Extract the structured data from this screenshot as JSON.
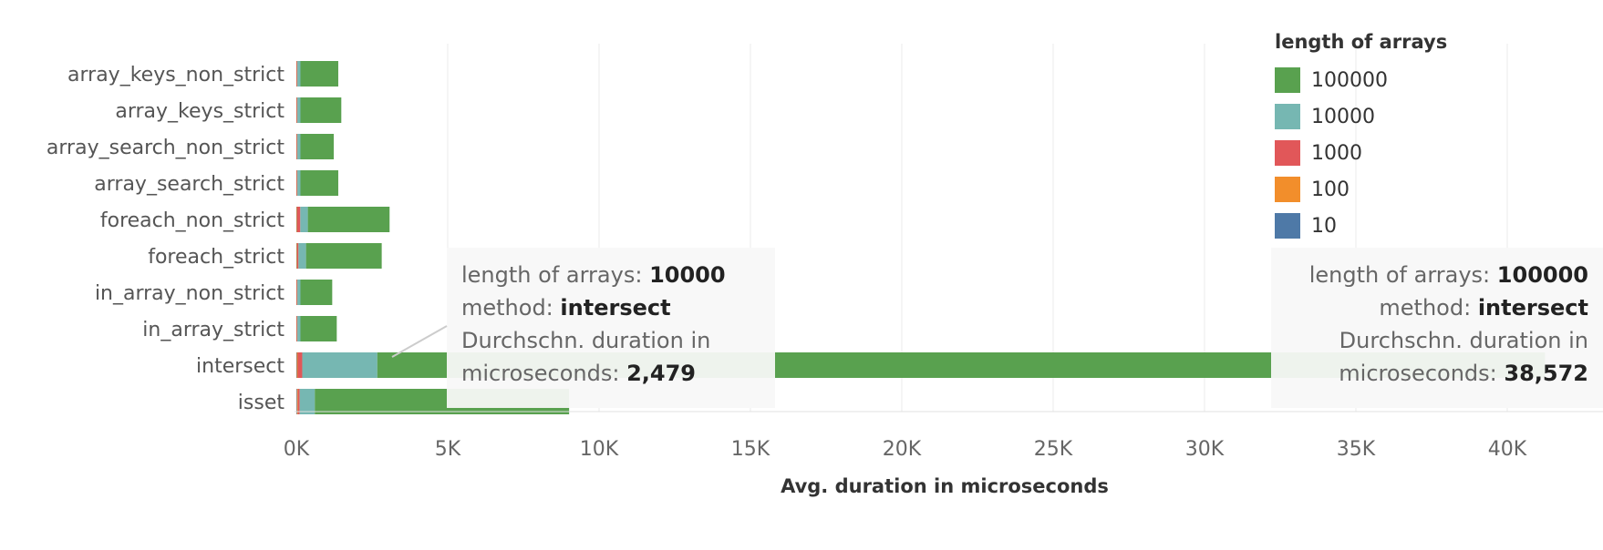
{
  "chart_data": {
    "type": "bar",
    "orientation": "horizontal",
    "stacked": true,
    "categories": [
      "array_keys_non_strict",
      "array_keys_strict",
      "array_search_non_strict",
      "array_search_strict",
      "foreach_non_strict",
      "foreach_strict",
      "in_array_non_strict",
      "in_array_strict",
      "intersect",
      "isset"
    ],
    "series": [
      {
        "name": "10",
        "color": "#4e79a7",
        "values": [
          5,
          5,
          5,
          5,
          10,
          10,
          5,
          5,
          15,
          20
        ]
      },
      {
        "name": "100",
        "color": "#f28e2b",
        "values": [
          10,
          10,
          10,
          10,
          20,
          20,
          10,
          10,
          30,
          30
        ]
      },
      {
        "name": "1000",
        "color": "#e15759",
        "values": [
          20,
          20,
          20,
          20,
          100,
          40,
          20,
          20,
          150,
          60
        ]
      },
      {
        "name": "10000",
        "color": "#76b7b2",
        "values": [
          100,
          100,
          100,
          100,
          250,
          250,
          100,
          100,
          2479,
          500
        ]
      },
      {
        "name": "100000",
        "color": "#59a14f",
        "values": [
          1250,
          1350,
          1100,
          1250,
          2700,
          2500,
          1050,
          1200,
          38572,
          8400
        ]
      }
    ],
    "xlabel": "Avg. duration in microseconds",
    "xticks": [
      "0K",
      "5K",
      "10K",
      "15K",
      "20K",
      "25K",
      "30K",
      "35K",
      "40K"
    ],
    "xlim": [
      0,
      43300
    ],
    "grid": "vertical",
    "legend_title": "length of arrays",
    "legend_order": [
      "100000",
      "10000",
      "1000",
      "100",
      "10"
    ],
    "legend_position": "top-right"
  },
  "tooltips": [
    {
      "label1": "length of arrays:",
      "value1": "10000",
      "label2": "method:",
      "value2": "intersect",
      "label3": "Durchschn. duration in",
      "label4": "microseconds:",
      "value4": "2,479"
    },
    {
      "label1": "length of arrays:",
      "value1": "100000",
      "label2": "method:",
      "value2": "intersect",
      "label3": "Durchschn. duration in",
      "label4": "microseconds:",
      "value4": "38,572"
    }
  ]
}
